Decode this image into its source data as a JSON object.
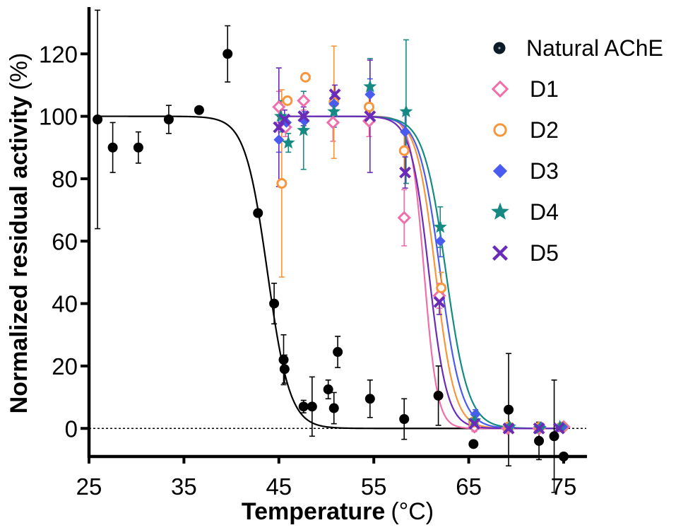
{
  "chart_data": {
    "type": "scatter",
    "xlabel": "Temperature",
    "xlabel_unit": "(°C)",
    "ylabel": "Normalized residual activity",
    "ylabel_unit": "(%)",
    "xlim": [
      25,
      77
    ],
    "ylim": [
      -9,
      135
    ],
    "xticks": [
      25,
      35,
      45,
      55,
      65,
      75
    ],
    "yticks": [
      0,
      20,
      40,
      60,
      80,
      100,
      120
    ],
    "reference_line": {
      "y": 0,
      "style": "dotted"
    },
    "legend_position": "top-right",
    "series": [
      {
        "name": "Natural AChE",
        "color": "#000000",
        "marker": "circle-filled",
        "fit": {
          "model": "sigmoid",
          "top": 100,
          "bottom": 0,
          "tm": 43.8,
          "slope": 0.85
        },
        "points": [
          {
            "x": 25.9,
            "y": 99,
            "err": 35
          },
          {
            "x": 27.5,
            "y": 90,
            "err": 8
          },
          {
            "x": 30.2,
            "y": 90,
            "err": 5
          },
          {
            "x": 33.4,
            "y": 99,
            "err": 4.5
          },
          {
            "x": 36.6,
            "y": 102,
            "err": 0
          },
          {
            "x": 39.6,
            "y": 120,
            "err": 9
          },
          {
            "x": 42.8,
            "y": 69,
            "err": 0
          },
          {
            "x": 44.5,
            "y": 40,
            "err": 6.5
          },
          {
            "x": 45.5,
            "y": 22,
            "err": 8
          },
          {
            "x": 45.6,
            "y": 19,
            "err": 4.5
          },
          {
            "x": 47.6,
            "y": 7,
            "err": 2
          },
          {
            "x": 48.5,
            "y": 7,
            "err": 9.5
          },
          {
            "x": 50.2,
            "y": 12.5,
            "err": 3
          },
          {
            "x": 50.8,
            "y": 6.5,
            "err": 5
          },
          {
            "x": 51.2,
            "y": 24.5,
            "err": 5
          },
          {
            "x": 54.6,
            "y": 9.5,
            "err": 6
          },
          {
            "x": 58.2,
            "y": 3,
            "err": 6.5
          },
          {
            "x": 61.8,
            "y": 10.5,
            "err": 9.5
          },
          {
            "x": 65.5,
            "y": -5,
            "err": 0
          },
          {
            "x": 69.2,
            "y": 6,
            "err": 18
          },
          {
            "x": 72.4,
            "y": -4,
            "err": 6
          },
          {
            "x": 74.0,
            "y": -2.5,
            "err": 18
          },
          {
            "x": 75.0,
            "y": -9,
            "err": 0
          }
        ]
      },
      {
        "name": "D1",
        "color": "#f06eaa",
        "marker": "diamond-open",
        "fit": {
          "model": "sigmoid",
          "top": 100,
          "bottom": 0,
          "tm": 60.3,
          "slope": 1.45
        },
        "points": [
          {
            "x": 45.0,
            "y": 103,
            "err": 5
          },
          {
            "x": 45.7,
            "y": 96.5,
            "err": 3
          },
          {
            "x": 47.6,
            "y": 105,
            "err": 3
          },
          {
            "x": 50.7,
            "y": 98,
            "err": 6
          },
          {
            "x": 54.5,
            "y": 98.5,
            "err": 5
          },
          {
            "x": 58.2,
            "y": 67.5,
            "err": 9
          },
          {
            "x": 61.9,
            "y": 42.5,
            "err": 4
          },
          {
            "x": 65.6,
            "y": 0.5,
            "err": 1.5
          },
          {
            "x": 69.1,
            "y": 0,
            "err": 1
          },
          {
            "x": 72.4,
            "y": 0,
            "err": 1
          },
          {
            "x": 75.0,
            "y": 0.5,
            "err": 1
          }
        ]
      },
      {
        "name": "D2",
        "color": "#f7963c",
        "marker": "circle-open",
        "fit": {
          "model": "sigmoid",
          "top": 100,
          "bottom": 0,
          "tm": 61.5,
          "slope": 1.0
        },
        "points": [
          {
            "x": 45.3,
            "y": 78.5,
            "err": 30
          },
          {
            "x": 45.9,
            "y": 105,
            "err": 0
          },
          {
            "x": 47.8,
            "y": 112.5,
            "err": 0
          },
          {
            "x": 50.8,
            "y": 104.5,
            "err": 18
          },
          {
            "x": 54.5,
            "y": 103,
            "err": 5
          },
          {
            "x": 58.2,
            "y": 89,
            "err": 6
          },
          {
            "x": 62.1,
            "y": 45,
            "err": 5
          },
          {
            "x": 65.5,
            "y": 2,
            "err": 1.5
          },
          {
            "x": 69.2,
            "y": 0.5,
            "err": 1
          },
          {
            "x": 72.5,
            "y": 0.5,
            "err": 1
          },
          {
            "x": 74.8,
            "y": 0.5,
            "err": 1
          }
        ]
      },
      {
        "name": "D3",
        "color": "#4a5cf0",
        "marker": "diamond-filled",
        "fit": {
          "model": "sigmoid",
          "top": 100,
          "bottom": 0,
          "tm": 62.0,
          "slope": 0.9
        },
        "points": [
          {
            "x": 45.0,
            "y": 92.5,
            "err": 4
          },
          {
            "x": 45.8,
            "y": 98,
            "err": 2
          },
          {
            "x": 47.7,
            "y": 98.5,
            "err": 3
          },
          {
            "x": 50.8,
            "y": 104,
            "err": 3
          },
          {
            "x": 54.6,
            "y": 107,
            "err": 5
          },
          {
            "x": 58.3,
            "y": 95,
            "err": 6
          },
          {
            "x": 62.0,
            "y": 60,
            "err": 5
          },
          {
            "x": 65.7,
            "y": 4.5,
            "err": 1.5
          },
          {
            "x": 69.3,
            "y": 0.5,
            "err": 1
          },
          {
            "x": 72.6,
            "y": 0.5,
            "err": 1
          },
          {
            "x": 74.9,
            "y": 0.5,
            "err": 1
          }
        ]
      },
      {
        "name": "D4",
        "color": "#168a82",
        "marker": "star-filled",
        "fit": {
          "model": "sigmoid",
          "top": 100,
          "bottom": 0,
          "tm": 62.6,
          "slope": 0.85
        },
        "points": [
          {
            "x": 45.2,
            "y": 100,
            "err": 5
          },
          {
            "x": 46.0,
            "y": 91.5,
            "err": 3
          },
          {
            "x": 47.6,
            "y": 95.5,
            "err": 12.5
          },
          {
            "x": 50.8,
            "y": 101.5,
            "err": 5
          },
          {
            "x": 54.6,
            "y": 109.5,
            "err": 9
          },
          {
            "x": 58.4,
            "y": 101.5,
            "err": 23
          },
          {
            "x": 62.0,
            "y": 64.5,
            "err": 6.5
          },
          {
            "x": 65.6,
            "y": 2.5,
            "err": 1.5
          },
          {
            "x": 69.3,
            "y": 0.5,
            "err": 1
          },
          {
            "x": 72.5,
            "y": 0,
            "err": 1
          },
          {
            "x": 74.6,
            "y": 0.5,
            "err": 1
          }
        ]
      },
      {
        "name": "D5",
        "color": "#6a2cb8",
        "marker": "x",
        "fit": {
          "model": "sigmoid",
          "top": 100,
          "bottom": 0,
          "tm": 60.8,
          "slope": 1.05
        },
        "points": [
          {
            "x": 45.0,
            "y": 96.5,
            "err": 19
          },
          {
            "x": 45.6,
            "y": 99,
            "err": 3
          },
          {
            "x": 47.6,
            "y": 100,
            "err": 3
          },
          {
            "x": 50.9,
            "y": 107,
            "err": 3
          },
          {
            "x": 54.6,
            "y": 100,
            "err": 18
          },
          {
            "x": 58.3,
            "y": 82,
            "err": 5
          },
          {
            "x": 61.9,
            "y": 40.5,
            "err": 4
          },
          {
            "x": 65.6,
            "y": 1.5,
            "err": 1.5
          },
          {
            "x": 69.2,
            "y": 0,
            "err": 1
          },
          {
            "x": 72.4,
            "y": 0,
            "err": 1
          },
          {
            "x": 74.5,
            "y": 0,
            "err": 1
          }
        ]
      }
    ]
  }
}
